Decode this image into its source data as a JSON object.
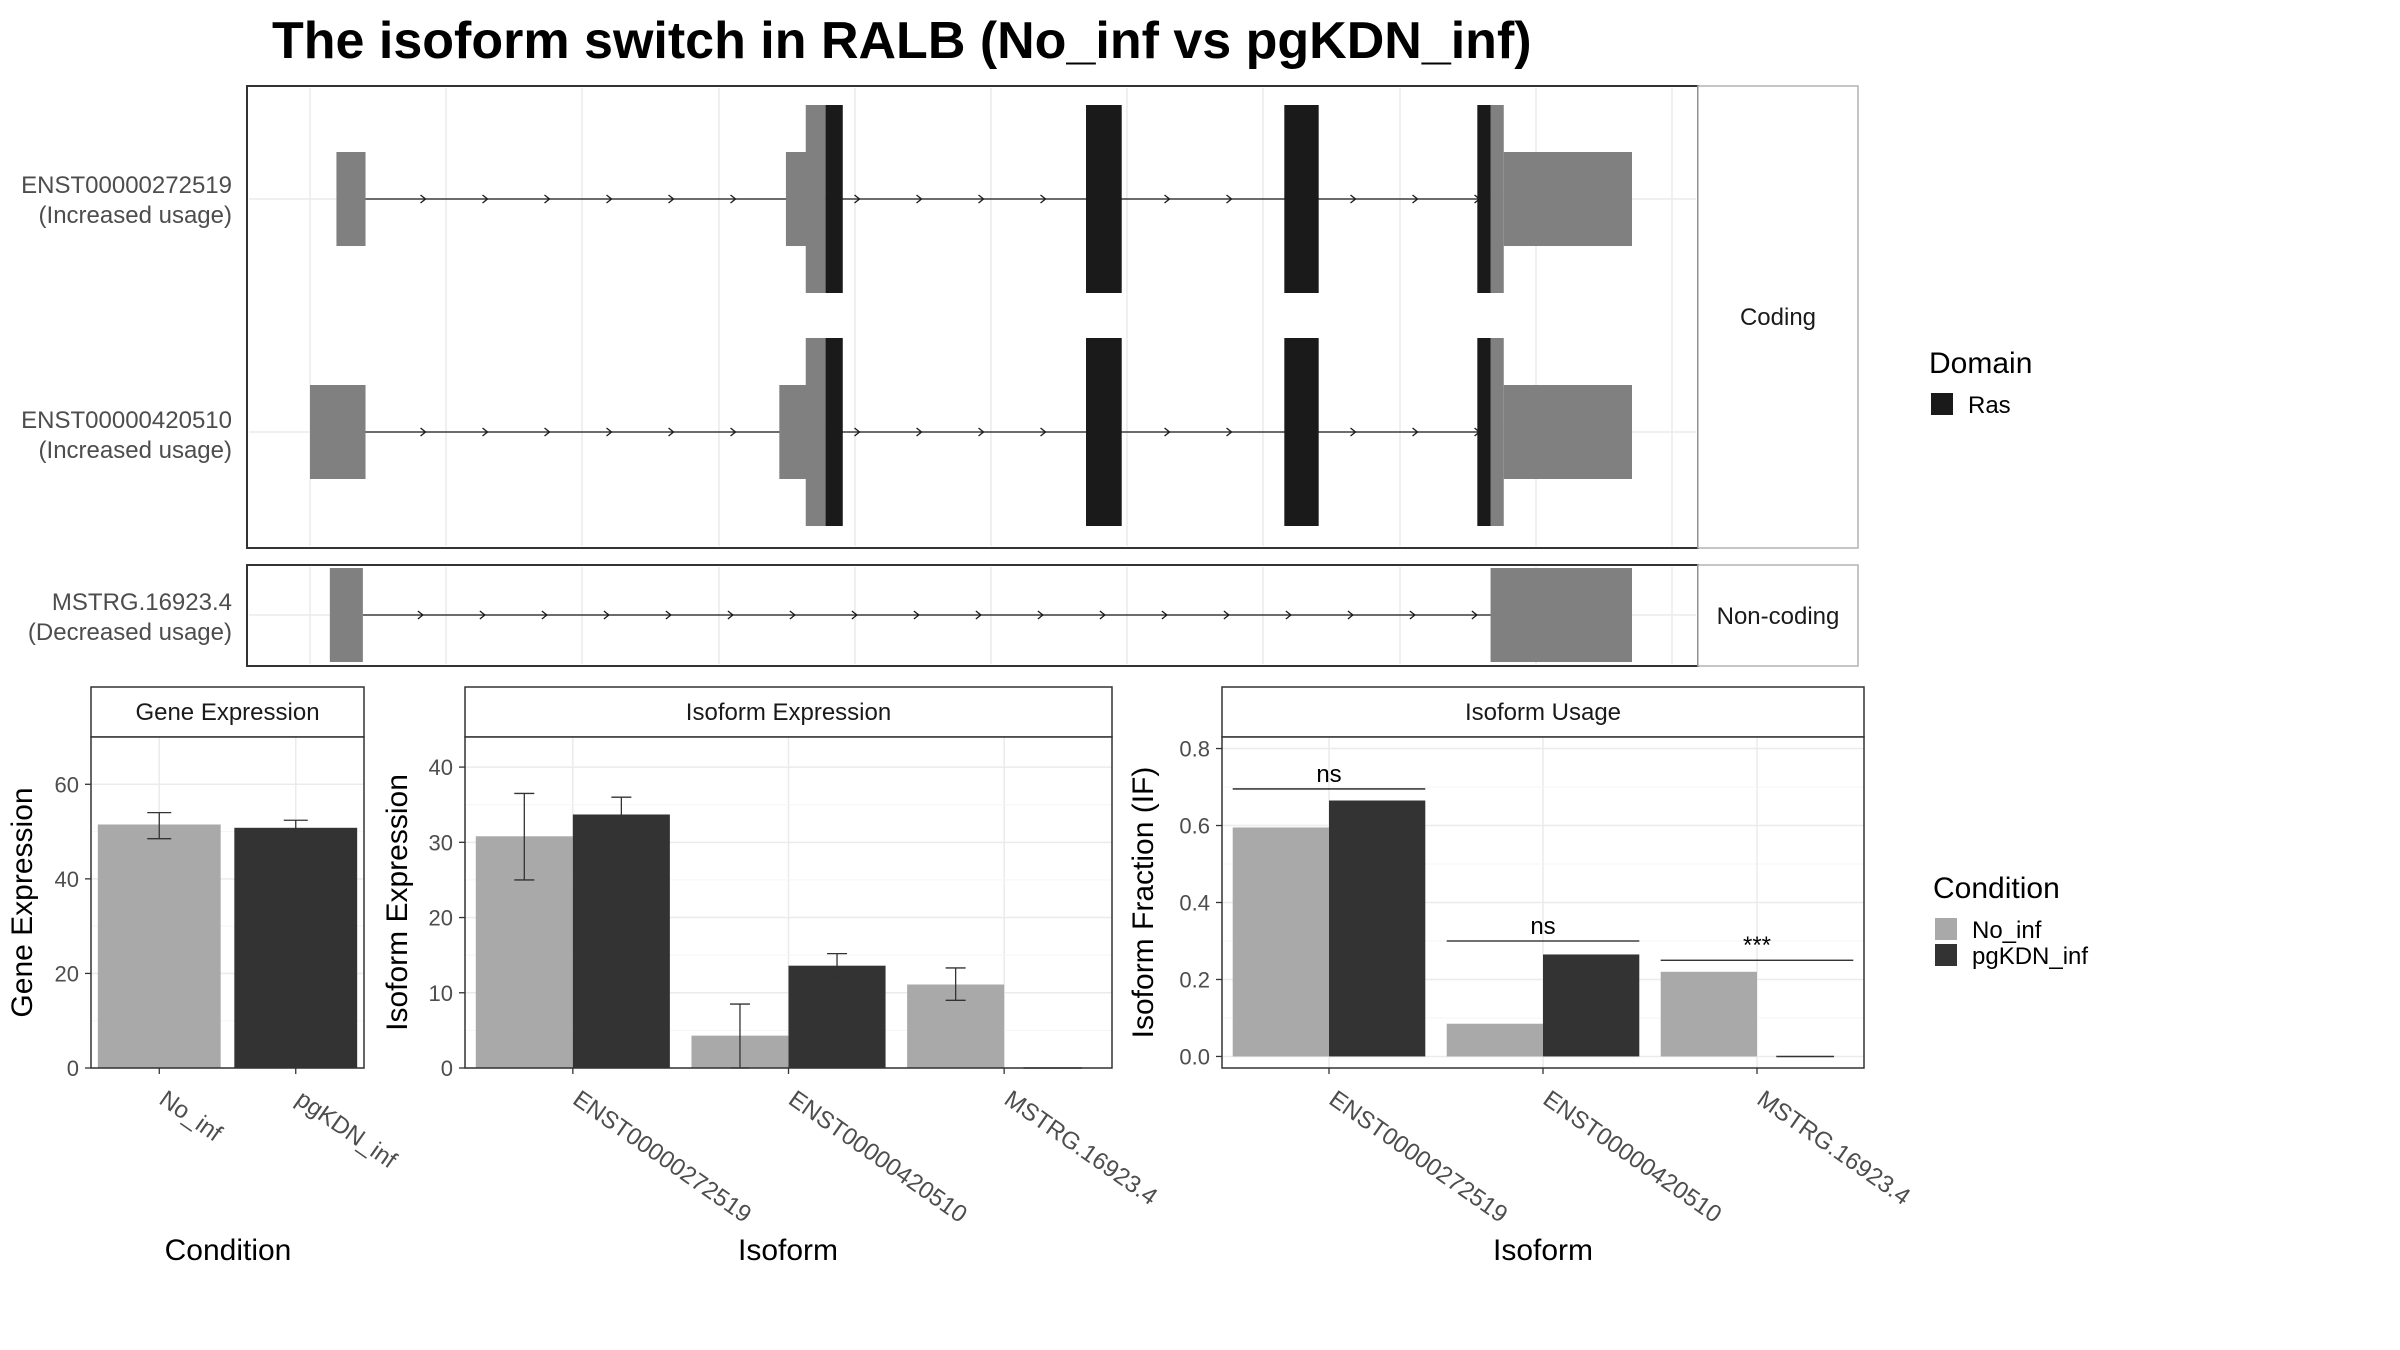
{
  "title": "The isoform switch in RALB (No_inf vs pgKDN_inf)",
  "colors": {
    "ras_domain": "#1a1a1a",
    "exon": "#808080",
    "no_inf": "#a9a9a9",
    "pgkdn_inf": "#333333",
    "intron": "#1a1a1a",
    "grid": "#ebebeb",
    "strip_bg": "#ffffff",
    "frame": "#333333"
  },
  "structure": {
    "coding_label": "Coding",
    "noncoding_label": "Non-coding",
    "x_range": [
      0,
      1000
    ],
    "isoforms": [
      {
        "id": "ENST00000272519",
        "usage": "(Increased usage)",
        "group": "coding",
        "exons": [
          [
            20,
            42
          ],
          [
            375,
            390
          ],
          [
            390,
            403
          ],
          [
            587,
            614
          ],
          [
            737,
            763
          ],
          [
            883,
            903
          ]
        ],
        "utr_narrow": [
          [
            375,
            390
          ],
          [
            883,
            903
          ]
        ],
        "intron_start": 42,
        "intron_end": 895,
        "cds_left": 360,
        "cds_right_end": 1000,
        "ras_domain": [
          [
            390,
            403
          ],
          [
            587,
            614
          ],
          [
            737,
            763
          ],
          [
            883,
            893
          ]
        ],
        "utr_left": [
          360,
          390
        ],
        "utr_right": [
          903,
          1000
        ]
      },
      {
        "id": "ENST00000420510",
        "usage": "(Increased usage)",
        "group": "coding",
        "exons": [
          [
            0,
            42
          ],
          [
            375,
            390
          ],
          [
            390,
            403
          ],
          [
            587,
            614
          ],
          [
            737,
            763
          ],
          [
            883,
            903
          ]
        ],
        "utr_narrow": [
          [
            375,
            390
          ],
          [
            883,
            903
          ]
        ],
        "intron_start": 42,
        "intron_end": 895,
        "cds_left": 355,
        "cds_right_end": 1000,
        "ras_domain": [
          [
            390,
            403
          ],
          [
            587,
            614
          ],
          [
            737,
            763
          ],
          [
            883,
            893
          ]
        ],
        "utr_left": [
          355,
          390
        ],
        "utr_right": [
          903,
          1000
        ]
      },
      {
        "id": "MSTRG.16923.4",
        "usage": "(Decreased usage)",
        "group": "noncoding",
        "exons": [
          [
            15,
            40
          ],
          [
            893,
            1000
          ]
        ],
        "intron_start": 40,
        "intron_end": 893
      }
    ]
  },
  "legend_domain": {
    "title": "Domain",
    "items": [
      {
        "label": "Ras",
        "color": "#1a1a1a"
      }
    ]
  },
  "legend_condition": {
    "title": "Condition",
    "items": [
      {
        "label": "No_inf",
        "color": "#a9a9a9"
      },
      {
        "label": "pgKDN_inf",
        "color": "#333333"
      }
    ]
  },
  "chart_data": [
    {
      "type": "bar",
      "title": "Gene Expression",
      "xlabel": "Condition",
      "ylabel": "Gene Expression",
      "ylim": [
        0,
        70
      ],
      "yticks": [
        0,
        20,
        40,
        60
      ],
      "categories": [
        "No_inf",
        "pgKDN_inf"
      ],
      "values": [
        51.5,
        50.8
      ],
      "errors": [
        [
          48.5,
          54.0
        ],
        [
          49.3,
          52.4
        ]
      ],
      "colors": [
        "#a9a9a9",
        "#333333"
      ]
    },
    {
      "type": "bar",
      "title": "Isoform Expression",
      "xlabel": "Isoform",
      "ylabel": "Isoform Expression",
      "ylim": [
        0,
        44
      ],
      "yticks": [
        0,
        10,
        20,
        30,
        40
      ],
      "categories": [
        "ENST00000272519",
        "ENST00000420510",
        "MSTRG.16923.4"
      ],
      "series": [
        {
          "name": "No_inf",
          "values": [
            30.8,
            4.3,
            11.1
          ],
          "errors": [
            [
              25.0,
              36.5
            ],
            [
              0,
              8.5
            ],
            [
              9.0,
              13.3
            ]
          ]
        },
        {
          "name": "pgKDN_inf",
          "values": [
            33.7,
            13.6,
            0.0
          ],
          "errors": [
            [
              31.3,
              36.0
            ],
            [
              12.0,
              15.2
            ],
            [
              0,
              0
            ]
          ]
        }
      ]
    },
    {
      "type": "bar",
      "title": "Isoform Usage",
      "xlabel": "Isoform",
      "ylabel": "Isoform Fraction (IF)",
      "ylim": [
        -0.03,
        0.83
      ],
      "yticks": [
        0.0,
        0.2,
        0.4,
        0.6,
        0.8
      ],
      "ytick_labels": [
        "0.0",
        "0.2",
        "0.4",
        "0.6",
        "0.8"
      ],
      "categories": [
        "ENST00000272519",
        "ENST00000420510",
        "MSTRG.16923.4"
      ],
      "series": [
        {
          "name": "No_inf",
          "values": [
            0.595,
            0.085,
            0.22
          ]
        },
        {
          "name": "pgKDN_inf",
          "values": [
            0.665,
            0.265,
            0.0
          ]
        }
      ],
      "significance": [
        "ns",
        "ns",
        "***"
      ],
      "sig_y": [
        0.695,
        0.3,
        0.25
      ]
    }
  ]
}
